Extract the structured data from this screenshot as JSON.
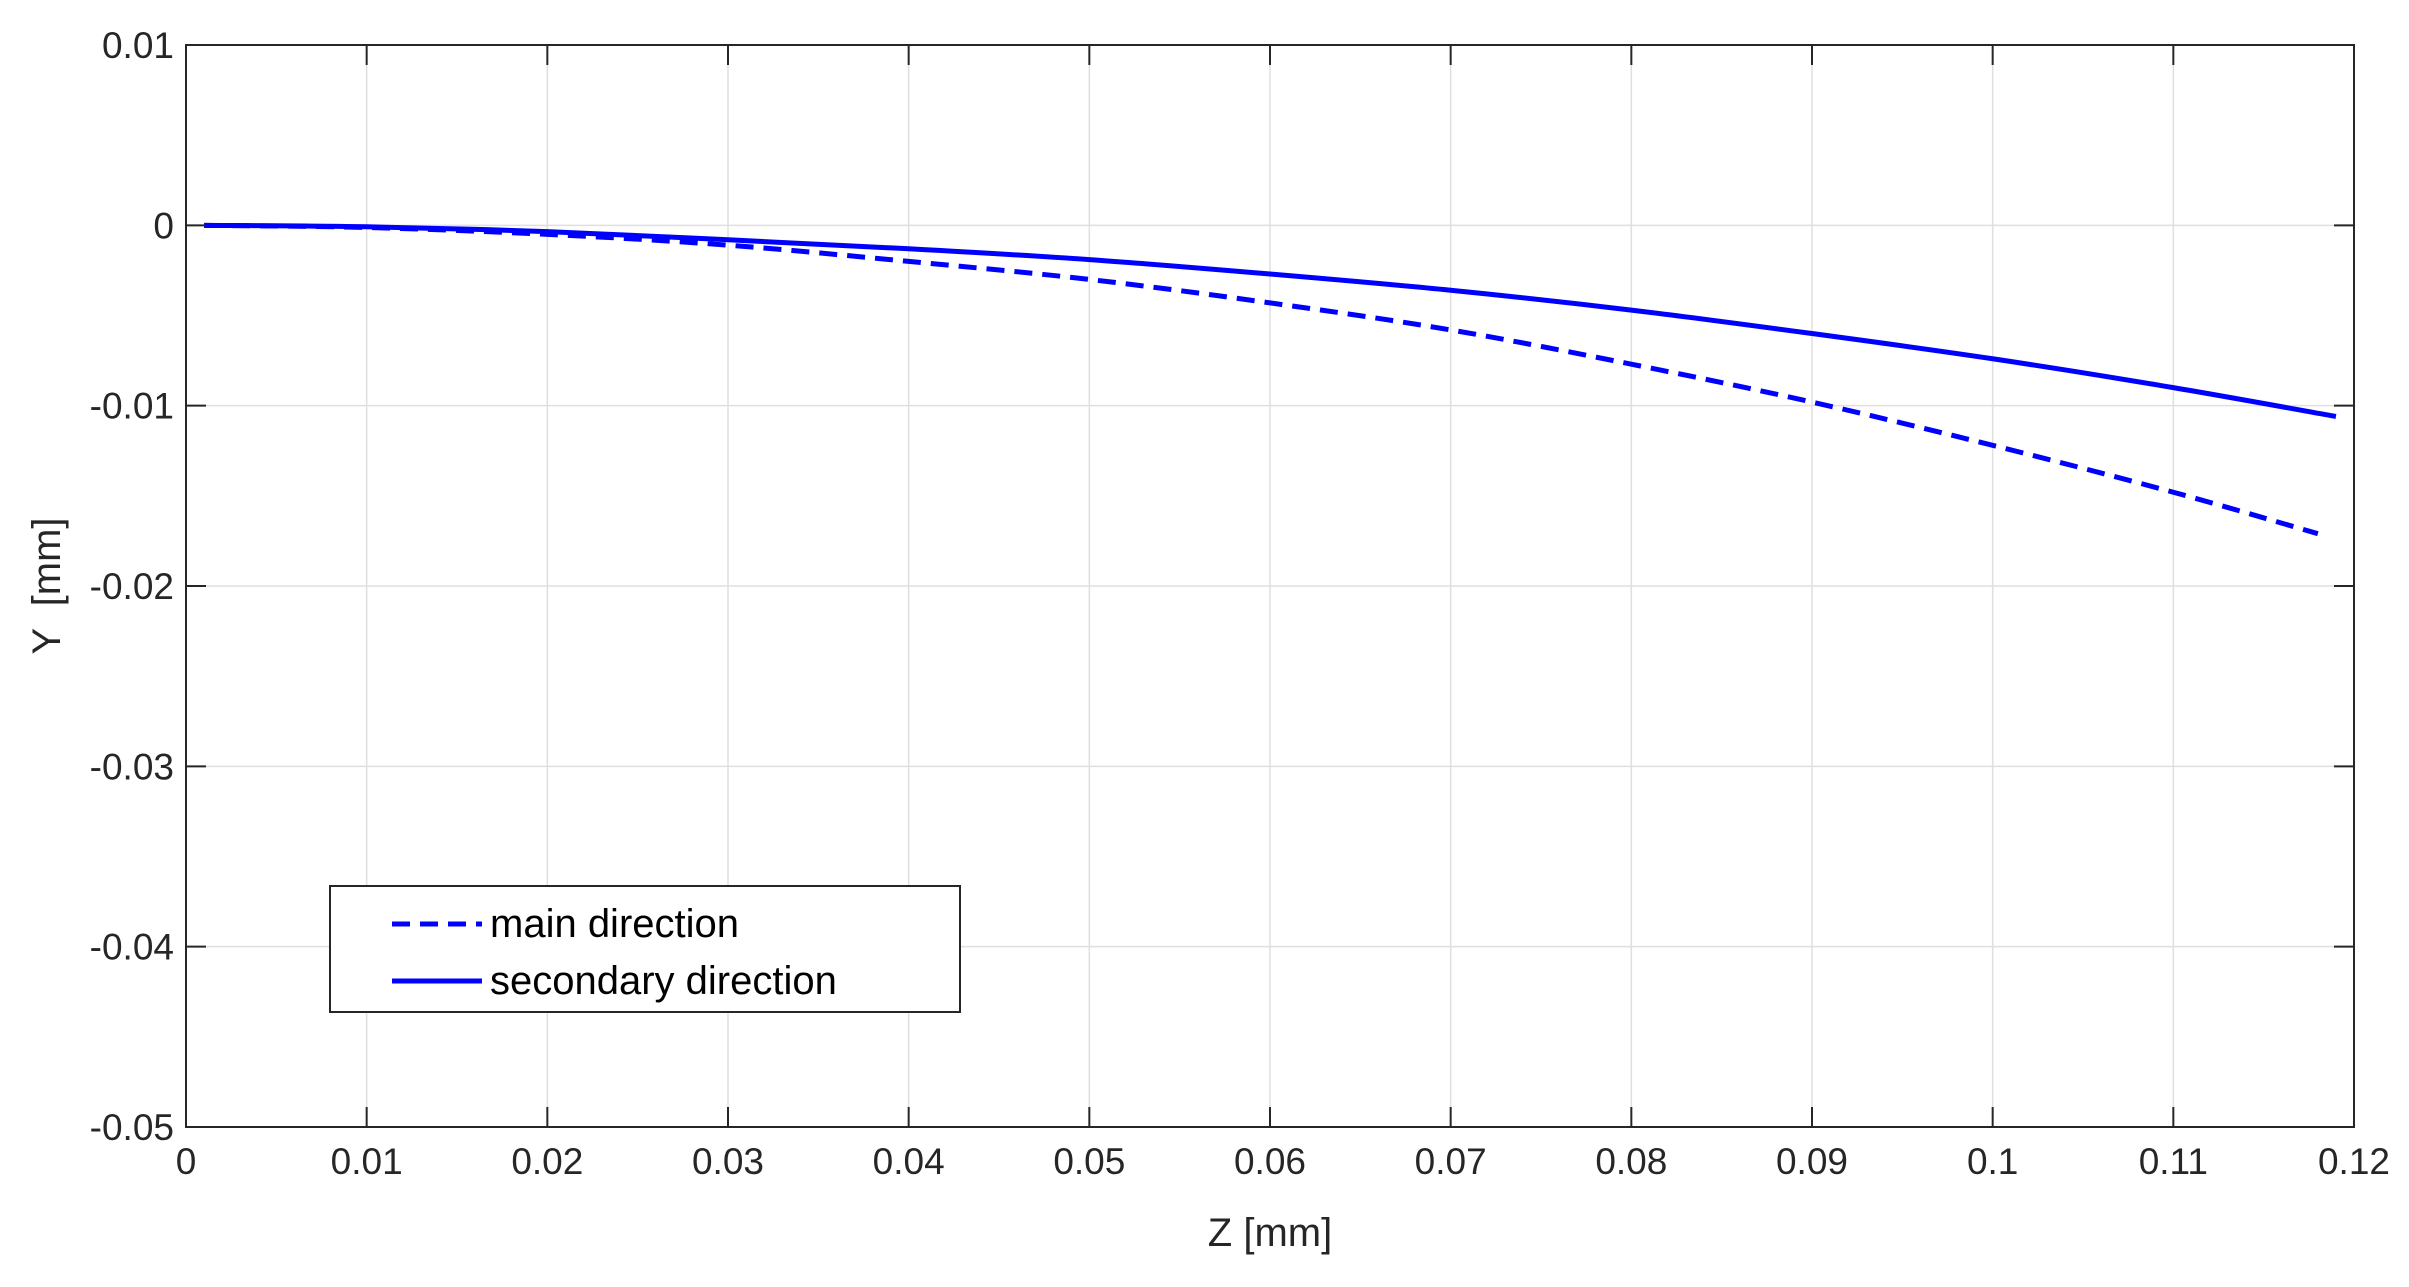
{
  "chart_data": {
    "type": "line",
    "title": "",
    "xlabel": "Z [mm]",
    "ylabel": "Y  [mm]",
    "xlim": [
      0,
      0.12
    ],
    "ylim": [
      -0.05,
      0.01
    ],
    "xticks": [
      0,
      0.01,
      0.02,
      0.03,
      0.04,
      0.05,
      0.06,
      0.07,
      0.08,
      0.09,
      0.1,
      0.11,
      0.12
    ],
    "xtick_labels": [
      "0",
      "0.01",
      "0.02",
      "0.03",
      "0.04",
      "0.05",
      "0.06",
      "0.07",
      "0.08",
      "0.09",
      "0.1",
      "0.11",
      "0.12"
    ],
    "yticks": [
      0.01,
      0,
      -0.01,
      -0.02,
      -0.03,
      -0.04,
      -0.05
    ],
    "ytick_labels": [
      "0.01",
      "0",
      "-0.01",
      "-0.02",
      "-0.03",
      "-0.04",
      "-0.05"
    ],
    "grid": true,
    "legend_position": "lower-left",
    "series": [
      {
        "name": "main direction",
        "style": "dashed",
        "color": "#0000ff",
        "x": [
          0.001,
          0.01,
          0.02,
          0.03,
          0.04,
          0.05,
          0.06,
          0.07,
          0.08,
          0.09,
          0.1,
          0.11,
          0.118
        ],
        "y": [
          0,
          -0.00012,
          -0.0005,
          -0.0011,
          -0.002,
          -0.003,
          -0.0043,
          -0.0058,
          -0.0077,
          -0.0098,
          -0.0122,
          -0.0148,
          -0.0171
        ]
      },
      {
        "name": "secondary direction",
        "style": "solid",
        "color": "#0000ff",
        "x": [
          0.001,
          0.01,
          0.02,
          0.03,
          0.04,
          0.05,
          0.06,
          0.07,
          0.08,
          0.09,
          0.1,
          0.11,
          0.119
        ],
        "y": [
          0,
          -8e-05,
          -0.00035,
          -0.0008,
          -0.0013,
          -0.0019,
          -0.0027,
          -0.0036,
          -0.0047,
          -0.006,
          -0.0074,
          -0.009,
          -0.0106
        ]
      }
    ]
  }
}
